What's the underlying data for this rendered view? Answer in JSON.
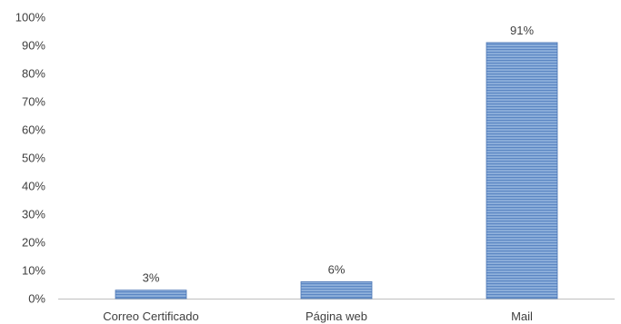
{
  "chart_data": {
    "type": "bar",
    "categories": [
      "Correo Certificado",
      "Página web",
      "Mail"
    ],
    "values": [
      3,
      6,
      91
    ],
    "data_labels": [
      "3%",
      "6%",
      "91%"
    ],
    "title": "",
    "xlabel": "",
    "ylabel": "",
    "ylim": [
      0,
      100
    ],
    "y_ticks": [
      0,
      10,
      20,
      30,
      40,
      50,
      60,
      70,
      80,
      90,
      100
    ],
    "y_tick_labels": [
      "0%",
      "10%",
      "20%",
      "30%",
      "40%",
      "50%",
      "60%",
      "70%",
      "80%",
      "90%",
      "100%"
    ],
    "grid": false,
    "legend": "none",
    "colors": {
      "bar_fill": "#8fb0db",
      "bar_stripe": "#5b86c3",
      "bar_edge": "#4a75b5",
      "axis": "#bfbfbf",
      "text": "#3f3f3f"
    }
  }
}
